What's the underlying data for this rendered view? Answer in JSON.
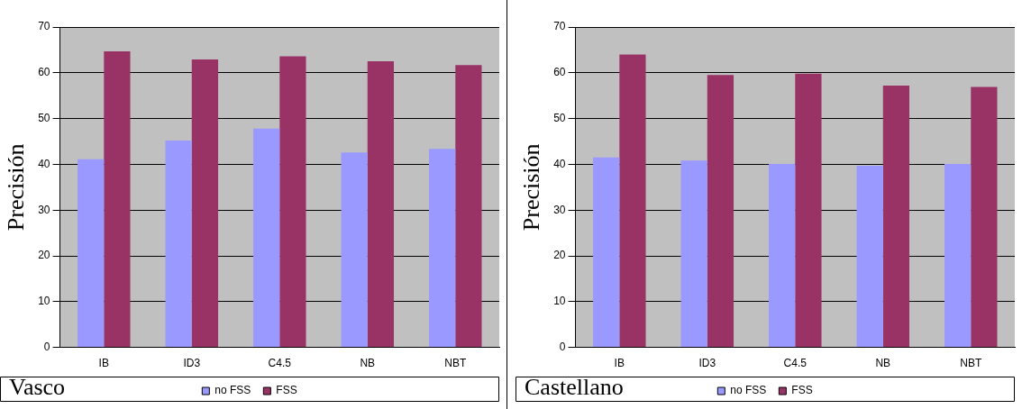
{
  "chart_data": [
    {
      "type": "bar",
      "title": "Vasco",
      "ylabel": "Precisión",
      "categories": [
        "IB",
        "ID3",
        "C4.5",
        "NB",
        "NBT"
      ],
      "series": [
        {
          "name": "no FSS",
          "color": "#9999ff",
          "values": [
            41.1,
            45.2,
            47.8,
            42.6,
            43.4
          ]
        },
        {
          "name": "FSS",
          "color": "#993366",
          "values": [
            64.7,
            62.9,
            63.6,
            62.5,
            61.7
          ]
        }
      ],
      "ylim": [
        0,
        70
      ],
      "yticks": [
        0,
        10,
        20,
        30,
        40,
        50,
        60,
        70
      ],
      "grid": "y",
      "legend": "bottom"
    },
    {
      "type": "bar",
      "title": "Castellano",
      "ylabel": "Precisión",
      "categories": [
        "IB",
        "ID3",
        "C4.5",
        "NB",
        "NBT"
      ],
      "series": [
        {
          "name": "no FSS",
          "color": "#9999ff",
          "values": [
            41.5,
            40.8,
            40.1,
            39.7,
            40.1
          ]
        },
        {
          "name": "FSS",
          "color": "#993366",
          "values": [
            64.0,
            59.5,
            59.8,
            57.2,
            56.9
          ]
        }
      ],
      "ylim": [
        0,
        70
      ],
      "yticks": [
        0,
        10,
        20,
        30,
        40,
        50,
        60,
        70
      ],
      "grid": "y",
      "legend": "bottom"
    }
  ]
}
